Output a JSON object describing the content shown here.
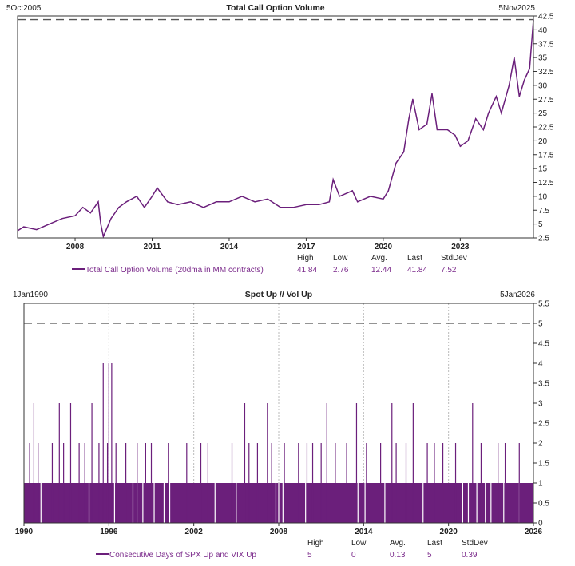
{
  "chart_data": [
    {
      "type": "line",
      "title": "Total Call Option Volume",
      "start_label": "5Oct2005",
      "end_label": "5Nov2025",
      "xlim": [
        2005.76,
        2025.85
      ],
      "ylim": [
        2.5,
        42.5
      ],
      "x_ticks": [
        "2008",
        "2011",
        "2014",
        "2017",
        "2020",
        "2023"
      ],
      "y_ticks": [
        "2.5",
        "5",
        "7.5",
        "10",
        "12.5",
        "15",
        "17.5",
        "20",
        "22.5",
        "25",
        "27.5",
        "30",
        "32.5",
        "35",
        "37.5",
        "40",
        "42.5"
      ],
      "high_line": 41.84,
      "color": "#6b1f7b",
      "x": [
        2005.76,
        2006.0,
        2006.5,
        2007.0,
        2007.5,
        2008.0,
        2008.3,
        2008.6,
        2008.9,
        2009.0,
        2009.1,
        2009.4,
        2009.7,
        2010.0,
        2010.4,
        2010.7,
        2011.0,
        2011.2,
        2011.6,
        2012.0,
        2012.5,
        2013.0,
        2013.5,
        2014.0,
        2014.5,
        2015.0,
        2015.5,
        2016.0,
        2016.5,
        2017.0,
        2017.5,
        2017.9,
        2018.05,
        2018.3,
        2018.8,
        2019.0,
        2019.5,
        2020.0,
        2020.2,
        2020.5,
        2020.8,
        2021.0,
        2021.15,
        2021.4,
        2021.7,
        2021.9,
        2022.1,
        2022.5,
        2022.8,
        2023.0,
        2023.3,
        2023.6,
        2023.9,
        2024.1,
        2024.4,
        2024.6,
        2024.9,
        2025.1,
        2025.3,
        2025.5,
        2025.7,
        2025.85
      ],
      "y": [
        3.8,
        4.5,
        4.0,
        5.0,
        6.0,
        6.5,
        8.0,
        7.0,
        9.0,
        5.0,
        2.76,
        6.0,
        8.0,
        9.0,
        10.0,
        8.0,
        10.0,
        11.5,
        9.0,
        8.5,
        9.0,
        8.0,
        9.0,
        9.0,
        10.0,
        9.0,
        9.5,
        8.0,
        8.0,
        8.5,
        8.5,
        9.0,
        13.0,
        10.0,
        11.0,
        9.0,
        10.0,
        9.5,
        11.0,
        16.0,
        18.0,
        24.0,
        27.5,
        22.0,
        23.0,
        28.5,
        22.0,
        22.0,
        21.0,
        19.0,
        20.0,
        24.0,
        22.0,
        25.0,
        28.0,
        25.0,
        30.0,
        35.0,
        28.0,
        31.0,
        33.0,
        41.84
      ],
      "legend": {
        "headers": [
          "High",
          "Low",
          "Avg.",
          "Last",
          "StdDev"
        ],
        "series_name": "Total Call Option Volume (20dma in MM contracts)",
        "values": [
          "41.84",
          "2.76",
          "12.44",
          "41.84",
          "7.52"
        ]
      }
    },
    {
      "type": "bar",
      "title": "Spot Up // Vol Up",
      "start_label": "1Jan1990",
      "end_label": "5Jan2026",
      "xlim": [
        1990,
        2026
      ],
      "ylim": [
        0,
        5.5
      ],
      "x_ticks": [
        "1990",
        "1996",
        "2002",
        "2008",
        "2014",
        "2020",
        "2026"
      ],
      "y_ticks": [
        "0",
        "0.5",
        "1",
        "1.5",
        "2",
        "2.5",
        "3",
        "3.5",
        "4",
        "4.5",
        "5",
        "5.5"
      ],
      "grid": "vertical dotted at x ticks",
      "high_line": 5,
      "color": "#6b1f7b",
      "baseline_value": 1,
      "zero_gaps": [
        1991.2,
        1994.6,
        1996.4,
        1997.7,
        1998.0,
        1998.4,
        1999.2,
        1999.9,
        2000.3,
        2003.5,
        2005.0,
        2007.8,
        2008.0,
        2008.3,
        2009.9,
        2013.6,
        2014.1,
        2015.5,
        2018.2,
        2021.0,
        2021.4,
        2022.0,
        2022.6,
        2023.0,
        2023.9,
        2025.0
      ],
      "spikes": [
        [
          1990.4,
          2
        ],
        [
          1990.7,
          3
        ],
        [
          1991.0,
          2
        ],
        [
          1992.0,
          2
        ],
        [
          1992.5,
          3
        ],
        [
          1992.8,
          2
        ],
        [
          1993.3,
          3
        ],
        [
          1993.9,
          2
        ],
        [
          1994.3,
          2
        ],
        [
          1994.8,
          3
        ],
        [
          1995.3,
          2
        ],
        [
          1995.6,
          4
        ],
        [
          1995.9,
          2
        ],
        [
          1996.0,
          4
        ],
        [
          1996.2,
          4
        ],
        [
          1996.5,
          2
        ],
        [
          1997.2,
          2
        ],
        [
          1998.0,
          2
        ],
        [
          1998.6,
          2
        ],
        [
          1999.0,
          2
        ],
        [
          2000.2,
          2
        ],
        [
          2001.5,
          2
        ],
        [
          2002.5,
          2
        ],
        [
          2003.0,
          2
        ],
        [
          2004.7,
          2
        ],
        [
          2005.6,
          3
        ],
        [
          2005.9,
          2
        ],
        [
          2006.5,
          2
        ],
        [
          2007.2,
          3
        ],
        [
          2007.5,
          2
        ],
        [
          2008.4,
          2
        ],
        [
          2009.4,
          2
        ],
        [
          2010.0,
          2
        ],
        [
          2010.4,
          2
        ],
        [
          2011.0,
          2
        ],
        [
          2011.4,
          3
        ],
        [
          2012.0,
          2
        ],
        [
          2012.8,
          2
        ],
        [
          2013.5,
          3
        ],
        [
          2014.2,
          2
        ],
        [
          2015.2,
          2
        ],
        [
          2016.0,
          3
        ],
        [
          2016.3,
          2
        ],
        [
          2017.0,
          2
        ],
        [
          2017.5,
          3
        ],
        [
          2018.5,
          2
        ],
        [
          2019.0,
          2
        ],
        [
          2019.6,
          2
        ],
        [
          2020.5,
          2
        ],
        [
          2021.7,
          3
        ],
        [
          2022.3,
          2
        ],
        [
          2023.5,
          2
        ],
        [
          2024.0,
          2
        ],
        [
          2025.0,
          2
        ],
        [
          2025.98,
          5
        ]
      ],
      "legend": {
        "headers": [
          "High",
          "Low",
          "Avg.",
          "Last",
          "StdDev"
        ],
        "series_name": "Consecutive Days of SPX Up and VIX Up",
        "values": [
          "5",
          "0",
          "0.13",
          "5",
          "0.39"
        ]
      }
    }
  ]
}
